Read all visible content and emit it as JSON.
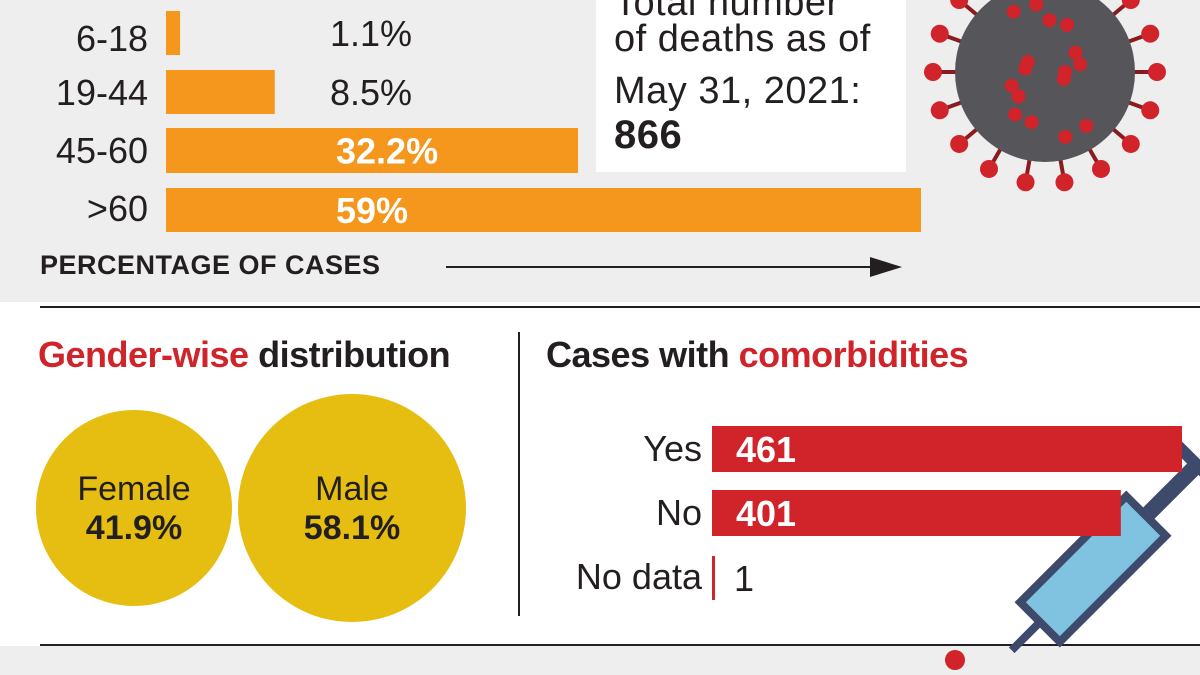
{
  "deaths_note": {
    "line1": "Total number",
    "line2": "of deaths as of",
    "line3": "May 31, 2021:",
    "value": "866"
  },
  "colors": {
    "age_bar": "#f5961d",
    "comorbidity_bar": "#d0232a",
    "circle": "#e6be12",
    "accent_text": "#d0232a",
    "virus": "#55555a",
    "virus_spike": "#d0232a",
    "panel_bg": "#eeeeee"
  },
  "icons": [
    "coronavirus-icon",
    "syringe-icon",
    "arrow-right-icon"
  ],
  "chart_data": [
    {
      "type": "bar",
      "orientation": "horizontal",
      "categories": [
        "6-18",
        "19-44",
        "45-60",
        ">60"
      ],
      "values": [
        1.1,
        8.5,
        32.2,
        59
      ],
      "value_labels": [
        "1.1%",
        "8.5%",
        "32.2%",
        "59%"
      ],
      "xlabel": "PERCENTAGE OF CASES",
      "xlim": [
        0,
        59
      ]
    },
    {
      "type": "pie",
      "title_parts": [
        "Gender-wise",
        "distribution"
      ],
      "categories": [
        "Female",
        "Male"
      ],
      "values": [
        41.9,
        58.1
      ],
      "value_labels": [
        "41.9%",
        "58.1%"
      ]
    },
    {
      "type": "bar",
      "orientation": "horizontal",
      "title_parts": [
        "Cases with",
        "comorbidities"
      ],
      "categories": [
        "Yes",
        "No",
        "No data"
      ],
      "values": [
        461,
        401,
        1
      ],
      "value_labels": [
        "461",
        "401",
        "1"
      ],
      "xlim": [
        0,
        461
      ]
    }
  ]
}
